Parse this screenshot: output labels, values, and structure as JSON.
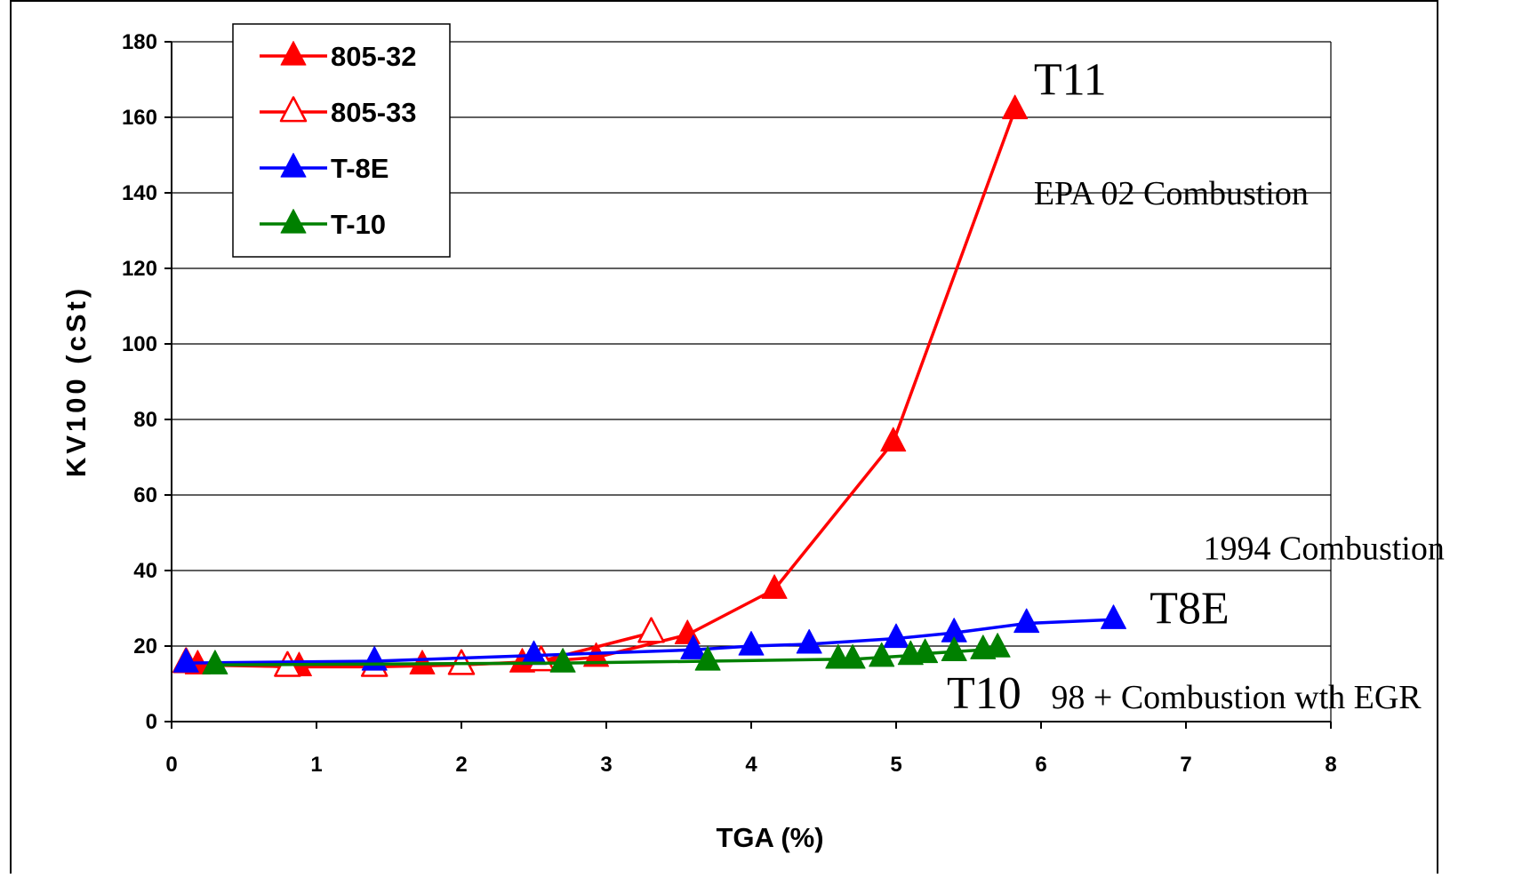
{
  "chart_data": {
    "type": "line",
    "xlabel": "TGA (%)",
    "ylabel": "KV100 (cSt)",
    "xlim": [
      0,
      8
    ],
    "ylim": [
      0,
      180
    ],
    "x_ticks": [
      "0",
      "1",
      "2",
      "3",
      "4",
      "5",
      "6",
      "7",
      "8"
    ],
    "y_ticks": [
      "0",
      "20",
      "40",
      "60",
      "80",
      "100",
      "120",
      "140",
      "160",
      "180"
    ],
    "grid": "horizontal",
    "legend_position": "top-left",
    "series": [
      {
        "name": "805-32",
        "color": "#ff0000",
        "marker": "filled-triangle",
        "x": [
          0.18,
          0.88,
          1.73,
          2.42,
          2.93,
          3.56,
          4.16,
          4.98,
          5.82
        ],
        "y": [
          15,
          14.5,
          15,
          15.5,
          17,
          23,
          35,
          74,
          162
        ]
      },
      {
        "name": "805-33",
        "color": "#ff0000",
        "marker": "open-triangle",
        "x": [
          0.1,
          0.8,
          1.4,
          2.0,
          2.55,
          3.31
        ],
        "y": [
          15.5,
          14.5,
          14.5,
          15,
          16,
          23.5
        ]
      },
      {
        "name": "T-8E",
        "color": "#0000ff",
        "marker": "filled-triangle",
        "x": [
          0.1,
          1.4,
          2.5,
          3.6,
          4.0,
          4.4,
          5.0,
          5.4,
          5.9,
          6.5
        ],
        "y": [
          15.5,
          16,
          17.5,
          19,
          20,
          20.5,
          22,
          23.5,
          26,
          27
        ]
      },
      {
        "name": "T-10",
        "color": "#008000",
        "marker": "filled-triangle",
        "x": [
          0.3,
          2.7,
          3.7,
          4.6,
          4.7,
          4.9,
          5.1,
          5.2,
          5.4,
          5.6,
          5.7
        ],
        "y": [
          15,
          15.5,
          16,
          16.5,
          16.5,
          17,
          17.5,
          18,
          18.5,
          19,
          19.5
        ]
      }
    ],
    "annotations": [
      {
        "text": "T11",
        "x": 5.95,
        "y": 166,
        "size": "large"
      },
      {
        "text": "EPA 02 Combustion",
        "x": 5.95,
        "y": 137,
        "size": "medium"
      },
      {
        "text": "1994 Combustion",
        "x": 7.12,
        "y": 43,
        "size": "medium"
      },
      {
        "text": "T8E",
        "x": 6.75,
        "y": 26,
        "size": "large"
      },
      {
        "text": "T10",
        "x": 5.35,
        "y": 3.5,
        "size": "large"
      },
      {
        "text": "98 + Combustion wth EGR",
        "x": 6.07,
        "y": 3.5,
        "size": "medium"
      }
    ]
  }
}
